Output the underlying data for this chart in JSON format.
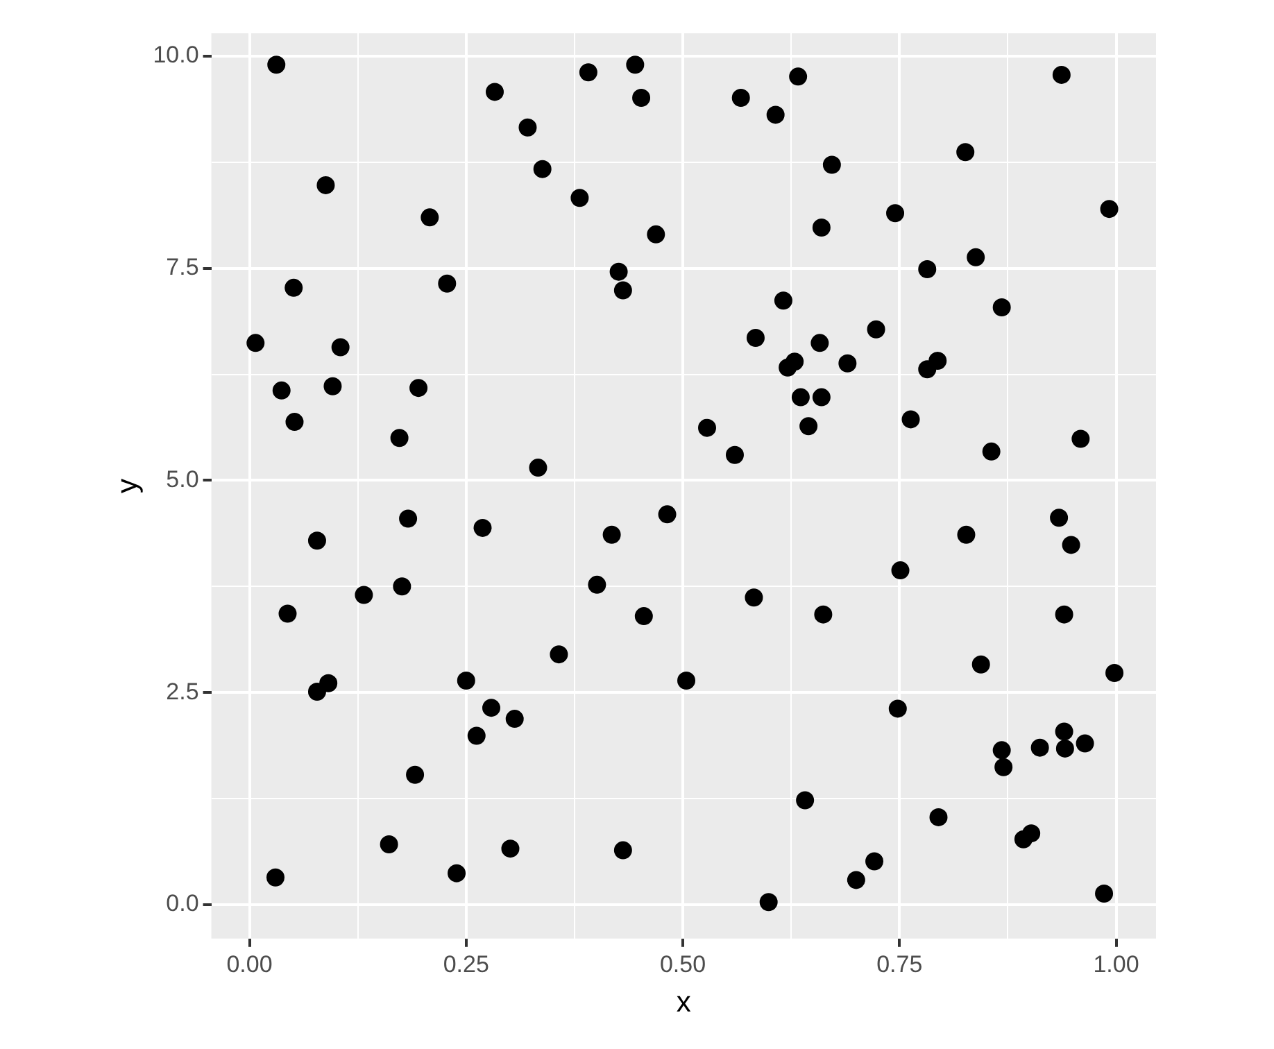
{
  "chart_data": {
    "type": "scatter",
    "xlabel": "x",
    "ylabel": "y",
    "color": "#000000",
    "marker": "circle",
    "grid": true,
    "legend": false,
    "xlim": [
      -0.044,
      1.046
    ],
    "ylim": [
      -0.4,
      10.27
    ],
    "xticks": [
      {
        "value": 0,
        "label": "0.00"
      },
      {
        "value": 0.125,
        "label": null
      },
      {
        "value": 0.25,
        "label": "0.25"
      },
      {
        "value": 0.375,
        "label": null
      },
      {
        "value": 0.5,
        "label": "0.50"
      },
      {
        "value": 0.625,
        "label": null
      },
      {
        "value": 0.75,
        "label": "0.75"
      },
      {
        "value": 0.875,
        "label": null
      },
      {
        "value": 1,
        "label": "1.00"
      }
    ],
    "yticks": [
      {
        "value": 0,
        "label": "0.0"
      },
      {
        "value": 1.25,
        "label": null
      },
      {
        "value": 2.5,
        "label": "2.5"
      },
      {
        "value": 3.75,
        "label": null
      },
      {
        "value": 5,
        "label": "5.0"
      },
      {
        "value": 6.25,
        "label": null
      },
      {
        "value": 7.5,
        "label": "7.5"
      },
      {
        "value": 8.75,
        "label": null
      },
      {
        "value": 10,
        "label": "10.0"
      }
    ],
    "x": [
      0.031,
      0.088,
      0.007,
      0.051,
      0.037,
      0.105,
      0.052,
      0.096,
      0.078,
      0.044,
      0.078,
      0.091,
      0.03,
      0.132,
      0.208,
      0.228,
      0.195,
      0.173,
      0.183,
      0.176,
      0.161,
      0.191,
      0.239,
      0.25,
      0.262,
      0.279,
      0.306,
      0.301,
      0.269,
      0.283,
      0.321,
      0.338,
      0.333,
      0.357,
      0.391,
      0.381,
      0.445,
      0.452,
      0.426,
      0.431,
      0.469,
      0.418,
      0.401,
      0.455,
      0.482,
      0.431,
      0.504,
      0.528,
      0.56,
      0.567,
      0.607,
      0.633,
      0.66,
      0.616,
      0.584,
      0.621,
      0.629,
      0.636,
      0.66,
      0.645,
      0.658,
      0.672,
      0.69,
      0.723,
      0.745,
      0.582,
      0.662,
      0.763,
      0.782,
      0.782,
      0.794,
      0.751,
      0.748,
      0.599,
      0.641,
      0.7,
      0.721,
      0.795,
      0.826,
      0.838,
      0.827,
      0.844,
      0.868,
      0.937,
      0.992,
      0.856,
      0.959,
      0.934,
      0.948,
      0.94,
      0.998,
      0.868,
      0.87,
      0.912,
      0.94,
      0.941,
      0.964,
      0.893,
      0.902,
      0.986
    ],
    "values": [
      9.9,
      8.48,
      6.62,
      7.27,
      6.06,
      6.57,
      5.69,
      6.11,
      4.29,
      3.43,
      2.51,
      2.61,
      0.32,
      3.65,
      8.1,
      7.32,
      6.09,
      5.5,
      4.55,
      3.75,
      0.71,
      1.53,
      0.37,
      2.64,
      1.99,
      2.32,
      2.19,
      0.66,
      4.44,
      9.58,
      9.16,
      8.67,
      5.15,
      2.95,
      9.81,
      8.33,
      9.9,
      9.51,
      7.46,
      7.24,
      7.9,
      4.36,
      3.77,
      3.4,
      4.6,
      0.64,
      2.64,
      5.62,
      5.3,
      9.51,
      9.31,
      9.76,
      7.98,
      7.12,
      6.68,
      6.33,
      6.4,
      5.98,
      5.98,
      5.64,
      6.62,
      8.72,
      6.38,
      6.78,
      8.15,
      3.62,
      3.42,
      5.72,
      7.49,
      6.31,
      6.41,
      3.94,
      2.31,
      0.03,
      1.23,
      0.29,
      0.51,
      1.03,
      8.87,
      7.63,
      4.36,
      2.83,
      7.04,
      9.78,
      8.2,
      5.34,
      5.49,
      4.56,
      4.24,
      3.42,
      2.73,
      1.82,
      1.62,
      1.85,
      2.04,
      1.84,
      1.9,
      0.77,
      0.84,
      0.13
    ]
  }
}
